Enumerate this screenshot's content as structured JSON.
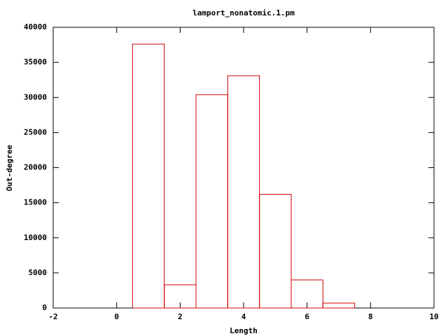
{
  "chart_data": {
    "type": "bar",
    "title": "lamport_nonatomic.1.pm",
    "x_label": "Length",
    "y_label": "Out-degree",
    "x": [
      1,
      2,
      3,
      4,
      5,
      6,
      7
    ],
    "values": [
      37600,
      3300,
      30400,
      33100,
      16200,
      4000,
      700
    ],
    "color": "#cc0000",
    "xlim": [
      -2,
      10
    ],
    "xticks": [
      -2,
      0,
      2,
      4,
      6,
      8,
      10
    ],
    "ylim": [
      0,
      40000
    ],
    "yticks": [
      0,
      5000,
      10000,
      15000,
      20000,
      25000,
      30000,
      35000,
      40000
    ],
    "grid": false
  }
}
